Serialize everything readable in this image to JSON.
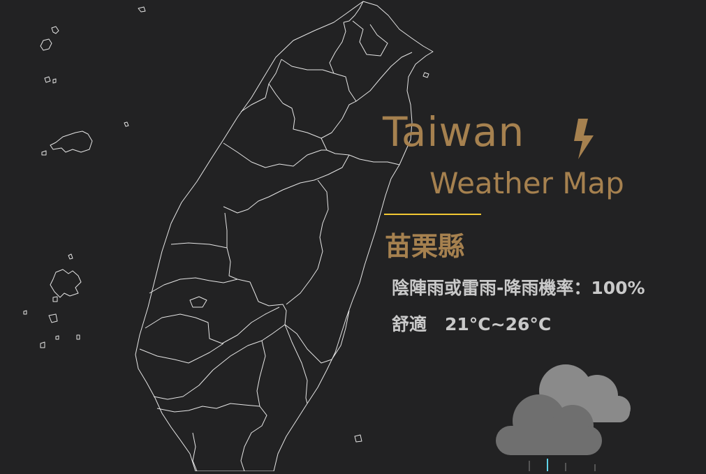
{
  "title": {
    "line1": "Taiwan",
    "line2": "Weather Map"
  },
  "icons": {
    "title_icon": "lightning-bolt-icon",
    "weather_icon": "rain-cloud-icon"
  },
  "colors": {
    "background": "#222223",
    "accent_gold": "#a6814f",
    "divider_yellow": "#f2c833",
    "info_text": "#c9c9c9",
    "map_outline": "#e6e6e6",
    "cloud_back": "#8a8a8a",
    "cloud_front": "#6f6f6f",
    "rain": "#5fd3e8"
  },
  "location": {
    "county": "苗栗縣"
  },
  "forecast": {
    "weather_text": "陰陣雨或雷雨-降雨機率：100%",
    "comfort": "舒適",
    "temperature": "21°C~26°C"
  }
}
